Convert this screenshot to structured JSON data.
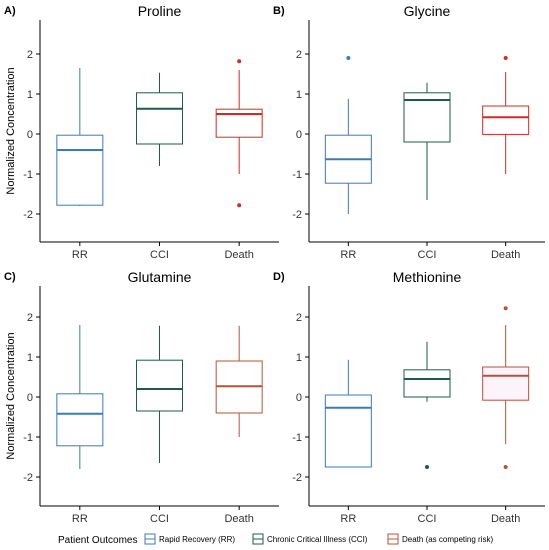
{
  "colors": {
    "rr": "#3d7ab8",
    "cci": "#1f5a4a",
    "death": "#d42a22",
    "death_brown": "#b5533a",
    "methionine_death_fill": "#fdf3fb"
  },
  "shared": {
    "ylabel": "Normalized Concentration",
    "y_ticks": [
      "-2",
      "-1",
      "0",
      "1",
      "2"
    ],
    "categories": [
      "RR",
      "CCI",
      "Death"
    ]
  },
  "legend": {
    "title": "Patient Outcomes",
    "items": [
      {
        "label": "Rapid Recovery (RR)",
        "color": "#3d7ab8"
      },
      {
        "label": "Chronic Critical Illness (CCI)",
        "color": "#1f5a4a"
      },
      {
        "label": "Death (as competing risk)",
        "color": "#b5533a"
      }
    ]
  },
  "chart_data": [
    {
      "type": "box",
      "panel_label": "A)",
      "title": "Proline",
      "ylabel": "Normalized Concentration",
      "ylim": [
        -2.8,
        2.6
      ],
      "categories": [
        "RR",
        "CCI",
        "Death"
      ],
      "boxes": [
        {
          "category": "RR",
          "whisker_low": -1.8,
          "q1": -1.78,
          "median": -0.4,
          "q3": -0.03,
          "whisker_high": 1.65,
          "outliers": []
        },
        {
          "category": "CCI",
          "whisker_low": -0.8,
          "q1": -0.25,
          "median": 0.63,
          "q3": 1.03,
          "whisker_high": 1.53,
          "outliers": []
        },
        {
          "category": "Death",
          "whisker_low": -1.0,
          "q1": -0.08,
          "median": 0.5,
          "q3": 0.62,
          "whisker_high": 1.6,
          "outliers": [
            1.82,
            -1.78
          ]
        }
      ]
    },
    {
      "type": "box",
      "panel_label": "B)",
      "title": "Glycine",
      "ylabel": "",
      "ylim": [
        -2.8,
        2.6
      ],
      "categories": [
        "RR",
        "CCI",
        "Death"
      ],
      "boxes": [
        {
          "category": "RR",
          "whisker_low": -2.0,
          "q1": -1.23,
          "median": -0.63,
          "q3": -0.03,
          "whisker_high": 0.88,
          "outliers": [
            1.9
          ]
        },
        {
          "category": "CCI",
          "whisker_low": -1.65,
          "q1": -0.2,
          "median": 0.85,
          "q3": 1.03,
          "whisker_high": 1.28,
          "outliers": []
        },
        {
          "category": "Death",
          "whisker_low": -1.0,
          "q1": -0.01,
          "median": 0.42,
          "q3": 0.7,
          "whisker_high": 1.55,
          "outliers": [
            1.9
          ]
        }
      ]
    },
    {
      "type": "box",
      "panel_label": "C)",
      "title": "Glutamine",
      "ylabel": "Normalized Concentration",
      "ylim": [
        -2.8,
        2.6
      ],
      "categories": [
        "RR",
        "CCI",
        "Death"
      ],
      "boxes": [
        {
          "category": "RR",
          "whisker_low": -1.8,
          "q1": -1.22,
          "median": -0.42,
          "q3": 0.08,
          "whisker_high": 1.8,
          "outliers": []
        },
        {
          "category": "CCI",
          "whisker_low": -1.65,
          "q1": -0.35,
          "median": 0.2,
          "q3": 0.92,
          "whisker_high": 1.78,
          "outliers": []
        },
        {
          "category": "Death",
          "whisker_low": -1.0,
          "q1": -0.4,
          "median": 0.27,
          "q3": 0.9,
          "whisker_high": 1.78,
          "outliers": []
        }
      ]
    },
    {
      "type": "box",
      "panel_label": "D)",
      "title": "Methionine",
      "ylabel": "",
      "ylim": [
        -2.8,
        2.6
      ],
      "categories": [
        "RR",
        "CCI",
        "Death"
      ],
      "boxes": [
        {
          "category": "RR",
          "whisker_low": -1.75,
          "q1": -1.75,
          "median": -0.27,
          "q3": 0.05,
          "whisker_high": 0.93,
          "outliers": []
        },
        {
          "category": "CCI",
          "whisker_low": -0.12,
          "q1": 0.0,
          "median": 0.45,
          "q3": 0.68,
          "whisker_high": 1.38,
          "outliers": [
            -1.75
          ]
        },
        {
          "category": "Death",
          "whisker_low": -1.18,
          "q1": -0.08,
          "median": 0.53,
          "q3": 0.75,
          "whisker_high": 1.8,
          "outliers": [
            2.22,
            -1.75
          ]
        }
      ]
    }
  ]
}
